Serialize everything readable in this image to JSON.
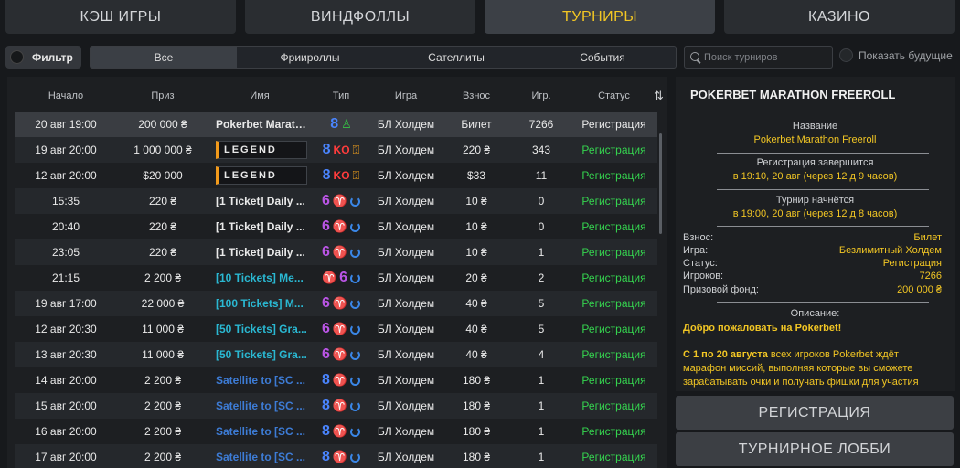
{
  "top_tabs": [
    {
      "label": "КЭШ ИГРЫ"
    },
    {
      "label": "ВИНДФОЛЛЫ"
    },
    {
      "label": "ТУРНИРЫ"
    },
    {
      "label": "КАЗИНО"
    }
  ],
  "active_top_tab": "ТУРНИРЫ",
  "filter": {
    "label": "Фильтр"
  },
  "sub_tabs": [
    {
      "label": "Все"
    },
    {
      "label": "Фриироллы"
    },
    {
      "label": "Сателлиты"
    },
    {
      "label": "События"
    }
  ],
  "search": {
    "placeholder": "Поиск турниров",
    "value": ""
  },
  "show_future": {
    "label": "Показать будущие"
  },
  "table": {
    "headers": {
      "start": "Начало",
      "prize": "Приз",
      "name": "Имя",
      "type": "Тип",
      "game": "Игра",
      "fee": "Взнос",
      "players": "Игр.",
      "status": "Статус"
    },
    "rows": [
      {
        "start": "20 авг 19:00",
        "prize": "200 000 ₴",
        "name": "Pokerbet Marath...",
        "name_style": "white",
        "type_num": "8",
        "type_icons": [
          "user"
        ],
        "game": "БЛ Холдем",
        "fee": "Билет",
        "players": "7266",
        "status": "Регистрация",
        "status_style": "white"
      },
      {
        "start": "19 авг 20:00",
        "prize": "1 000 000 ₴",
        "name": "LEGEND",
        "name_style": "legend",
        "type_num": "8",
        "type_icons": [
          "ko",
          "hand"
        ],
        "game": "БЛ Холдем",
        "fee": "220 ₴",
        "players": "343",
        "status": "Регистрация",
        "status_style": "green"
      },
      {
        "start": "12 авг 20:00",
        "prize": "$20 000",
        "name": "LEGEND",
        "name_style": "legend",
        "type_num": "8",
        "type_icons": [
          "ko",
          "hand"
        ],
        "game": "БЛ Холдем",
        "fee": "$33",
        "players": "11",
        "status": "Регистрация",
        "status_style": "green"
      },
      {
        "start": "15:35",
        "prize": "220 ₴",
        "name": "[1 Ticket] Daily ...",
        "name_style": "white",
        "type_num": "6",
        "type_icons": [
          "cup",
          "cycle"
        ],
        "game": "БЛ Холдем",
        "fee": "10 ₴",
        "players": "0",
        "status": "Регистрация",
        "status_style": "green"
      },
      {
        "start": "20:40",
        "prize": "220 ₴",
        "name": "[1 Ticket] Daily ...",
        "name_style": "white",
        "type_num": "6",
        "type_icons": [
          "cup",
          "cycle"
        ],
        "game": "БЛ Холдем",
        "fee": "10 ₴",
        "players": "0",
        "status": "Регистрация",
        "status_style": "green"
      },
      {
        "start": "23:05",
        "prize": "220 ₴",
        "name": "[1 Ticket] Daily ...",
        "name_style": "white",
        "type_num": "6",
        "type_icons": [
          "cup",
          "cycle"
        ],
        "game": "БЛ Холдем",
        "fee": "10 ₴",
        "players": "1",
        "status": "Регистрация",
        "status_style": "green"
      },
      {
        "start": "21:15",
        "prize": "2 200 ₴",
        "name": "[10 Tickets] Me...",
        "name_style": "cyan",
        "type_num": "6",
        "type_icons": [
          "cup-pre",
          "cycle"
        ],
        "game": "БЛ Холдем",
        "fee": "20 ₴",
        "players": "2",
        "status": "Регистрация",
        "status_style": "green"
      },
      {
        "start": "19 авг 17:00",
        "prize": "22 000 ₴",
        "name": "[100 Tickets] M...",
        "name_style": "cyan",
        "type_num": "6",
        "type_icons": [
          "cup",
          "cycle"
        ],
        "game": "БЛ Холдем",
        "fee": "40 ₴",
        "players": "5",
        "status": "Регистрация",
        "status_style": "green"
      },
      {
        "start": "12 авг 20:30",
        "prize": "11 000 ₴",
        "name": "[50 Tickets] Gra...",
        "name_style": "cyan",
        "type_num": "6",
        "type_icons": [
          "cup",
          "cycle"
        ],
        "game": "БЛ Холдем",
        "fee": "40 ₴",
        "players": "5",
        "status": "Регистрация",
        "status_style": "green"
      },
      {
        "start": "13 авг 20:30",
        "prize": "11 000 ₴",
        "name": "[50 Tickets] Gra...",
        "name_style": "cyan",
        "type_num": "6",
        "type_icons": [
          "cup",
          "cycle"
        ],
        "game": "БЛ Холдем",
        "fee": "40 ₴",
        "players": "4",
        "status": "Регистрация",
        "status_style": "green"
      },
      {
        "start": "14 авг 20:00",
        "prize": "2 200 ₴",
        "name": "Satellite to [SC ...",
        "name_style": "blue",
        "type_num": "8",
        "type_icons": [
          "cup",
          "cycle"
        ],
        "game": "БЛ Холдем",
        "fee": "180 ₴",
        "players": "1",
        "status": "Регистрация",
        "status_style": "green"
      },
      {
        "start": "15 авг 20:00",
        "prize": "2 200 ₴",
        "name": "Satellite to [SC ...",
        "name_style": "blue",
        "type_num": "8",
        "type_icons": [
          "cup",
          "cycle"
        ],
        "game": "БЛ Холдем",
        "fee": "180 ₴",
        "players": "1",
        "status": "Регистрация",
        "status_style": "green"
      },
      {
        "start": "16 авг 20:00",
        "prize": "2 200 ₴",
        "name": "Satellite to [SC ...",
        "name_style": "blue",
        "type_num": "8",
        "type_icons": [
          "cup",
          "cycle"
        ],
        "game": "БЛ Холдем",
        "fee": "180 ₴",
        "players": "1",
        "status": "Регистрация",
        "status_style": "green"
      },
      {
        "start": "17 авг 20:00",
        "prize": "2 200 ₴",
        "name": "Satellite to [SC ...",
        "name_style": "blue",
        "type_num": "8",
        "type_icons": [
          "cup",
          "cycle"
        ],
        "game": "БЛ Холдем",
        "fee": "180 ₴",
        "players": "1",
        "status": "Регистрация",
        "status_style": "green"
      }
    ]
  },
  "details": {
    "title": "POKERBET MARATHON FREEROLL",
    "name_label": "Название",
    "name_value": "Pokerbet Marathon Freeroll",
    "reg_end_label": "Регистрация завершится",
    "reg_end_value": "в 19:10, 20 авг (через 12 д 9 часов)",
    "start_label": "Турнир начнётся",
    "start_value": "в 19:00, 20 авг (через 12 д 8 часов)",
    "info": [
      {
        "k": "Взнос:",
        "v": "Билет"
      },
      {
        "k": "Игра:",
        "v": "Безлимитный Холдем"
      },
      {
        "k": "Статус:",
        "v": "Регистрация"
      },
      {
        "k": "Игроков:",
        "v": "7266"
      },
      {
        "k": "Призовой фонд:",
        "v": "200 000 ₴"
      }
    ],
    "desc_label": "Описание:",
    "desc_welcome": "Добро пожаловать на Pokerbet!",
    "desc_bold": "С 1 по 20 августа",
    "desc_text": " всех игроков Pokerbet ждёт марафон миссий, выполняя которые вы сможете зарабатывать очки и получать фишки для участия"
  },
  "buttons": {
    "register": "РЕГИСТРАЦИЯ",
    "lobby": "ТУРНИРНОЕ ЛОББИ"
  },
  "colors": {
    "accent_yellow": "#f2c624",
    "status_green": "#35d44f",
    "legend_orange": "#f29a1b",
    "type8_blue": "#4a85ff",
    "type6_purple": "#bb55e6",
    "ko_red": "#ff3c3c"
  },
  "icons": {
    "filter_toggle": "toggle-dot",
    "search": "search-icon",
    "refresh": "refresh-icon",
    "user": "user-icon",
    "ko": "ko-icon",
    "hand": "hand-icon",
    "cup": "trophy-icon",
    "cycle": "rebuy-icon"
  }
}
